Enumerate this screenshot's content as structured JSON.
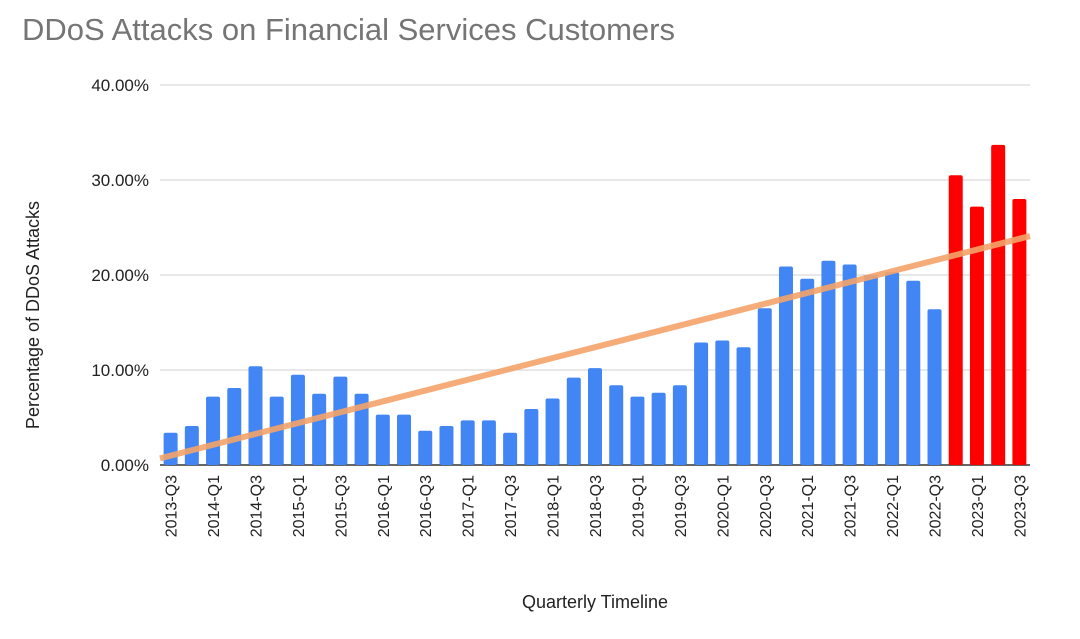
{
  "chart_data": {
    "type": "bar",
    "title": "DDoS Attacks on Financial Services Customers",
    "xlabel": "Quarterly Timeline",
    "ylabel": "Percentage of DDoS Attacks",
    "ylim": [
      0,
      40
    ],
    "yticks": [
      "0.00%",
      "10.00%",
      "20.00%",
      "30.00%",
      "40.00%"
    ],
    "ytick_values": [
      0,
      10,
      20,
      30,
      40
    ],
    "grid": true,
    "categories": [
      "2013-Q3",
      "2013-Q4",
      "2014-Q1",
      "2014-Q2",
      "2014-Q3",
      "2014-Q4",
      "2015-Q1",
      "2015-Q2",
      "2015-Q3",
      "2015-Q4",
      "2016-Q1",
      "2016-Q2",
      "2016-Q3",
      "2016-Q4",
      "2017-Q1",
      "2017-Q2",
      "2017-Q3",
      "2017-Q4",
      "2018-Q1",
      "2018-Q2",
      "2018-Q3",
      "2018-Q4",
      "2019-Q1",
      "2019-Q2",
      "2019-Q3",
      "2019-Q4",
      "2020-Q1",
      "2020-Q2",
      "2020-Q3",
      "2020-Q4",
      "2021-Q1",
      "2021-Q2",
      "2021-Q3",
      "2021-Q4",
      "2022-Q1",
      "2022-Q2",
      "2022-Q3",
      "2022-Q4",
      "2023-Q1",
      "2023-Q2",
      "2023-Q3"
    ],
    "tick_labels": [
      "2013-Q3",
      "2014-Q1",
      "2014-Q3",
      "2015-Q1",
      "2015-Q3",
      "2016-Q1",
      "2016-Q3",
      "2017-Q1",
      "2017-Q3",
      "2018-Q1",
      "2018-Q3",
      "2019-Q1",
      "2019-Q3",
      "2020-Q1",
      "2020-Q3",
      "2021-Q1",
      "2021-Q3",
      "2022-Q1",
      "2022-Q3",
      "2023-Q1",
      "2023-Q3"
    ],
    "values": [
      3.4,
      4.1,
      7.2,
      8.1,
      10.4,
      7.2,
      9.5,
      7.5,
      9.3,
      7.5,
      5.3,
      5.3,
      3.6,
      4.1,
      4.7,
      4.7,
      3.4,
      5.9,
      7.0,
      9.2,
      10.2,
      8.4,
      7.2,
      7.6,
      8.4,
      12.9,
      13.1,
      12.4,
      16.5,
      20.9,
      19.6,
      21.5,
      21.1,
      20.0,
      20.3,
      19.4,
      16.4,
      30.5,
      27.2,
      33.7,
      28.0
    ],
    "bar_colors": {
      "default": "#4285f4",
      "highlight": "#ff0000"
    },
    "highlighted_categories": [
      "2022-Q4",
      "2023-Q1",
      "2023-Q2",
      "2023-Q3"
    ],
    "trendline": {
      "type": "linear",
      "color": "#f4a46a",
      "start_value": 0.7,
      "end_value": 24.1
    }
  }
}
